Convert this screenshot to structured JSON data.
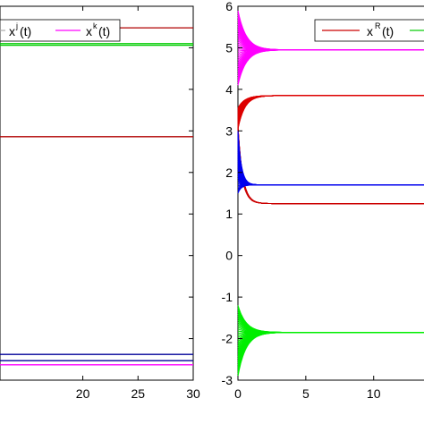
{
  "chart_data": [
    {
      "type": "line",
      "title": "",
      "xlabel": "",
      "ylabel": "",
      "xlim": [
        12.5,
        30
      ],
      "ylim": [
        -3,
        6
      ],
      "x_ticks": [
        "20",
        "25",
        "30"
      ],
      "x_tick_values": [
        20,
        25,
        30
      ],
      "y_ticks": [],
      "grid": false,
      "legend": {
        "placement": "top",
        "entries": [
          {
            "base": "x",
            "sup": "j",
            "tail": "(t)",
            "color": "#aaaaaa"
          },
          {
            "base": "x",
            "sup": "k",
            "tail": "(t)",
            "color": "#ff00ff"
          }
        ]
      },
      "series": [
        {
          "color": "#b00000",
          "x": [
            12.5,
            30
          ],
          "y": [
            5.48,
            5.48
          ]
        },
        {
          "color": "#00cc00",
          "x": [
            12.5,
            30
          ],
          "y": [
            5.1,
            5.1
          ]
        },
        {
          "color": "#00cc00",
          "x": [
            12.5,
            30
          ],
          "y": [
            5.06,
            5.06
          ]
        },
        {
          "color": "#b00000",
          "x": [
            12.5,
            30
          ],
          "y": [
            2.86,
            2.86
          ]
        },
        {
          "color": "#000099",
          "x": [
            12.5,
            30
          ],
          "y": [
            -2.38,
            -2.38
          ]
        },
        {
          "color": "#000099",
          "x": [
            12.5,
            30
          ],
          "y": [
            -2.53,
            -2.53
          ]
        },
        {
          "color": "#ff00ff",
          "x": [
            12.5,
            30
          ],
          "y": [
            -2.63,
            -2.63
          ]
        }
      ]
    },
    {
      "type": "line",
      "title": "",
      "xlabel": "",
      "ylabel": "",
      "xlim": [
        0,
        14.5
      ],
      "ylim": [
        -3,
        6
      ],
      "x_ticks": [
        "0",
        "5",
        "10"
      ],
      "x_tick_values": [
        0,
        5,
        10
      ],
      "y_ticks": [
        "6",
        "5",
        "4",
        "3",
        "2",
        "1",
        "0",
        "-1",
        "-2",
        "-3"
      ],
      "y_tick_values": [
        6,
        5,
        4,
        3,
        2,
        1,
        0,
        -1,
        -2,
        -3
      ],
      "grid": false,
      "legend": {
        "placement": "top",
        "entries": [
          {
            "base": "x",
            "sup": "R",
            "tail": "(t)",
            "color": "#cc0000"
          },
          {
            "base": "",
            "sup": "",
            "tail": "",
            "color": "#00cc00"
          }
        ]
      },
      "series": [
        {
          "color": "#ff00ff",
          "type": "bundle",
          "x0": 0,
          "y_start_range": [
            4.1,
            5.9
          ],
          "settle": 4.95,
          "tau": 0.6
        },
        {
          "color": "#00ee00",
          "type": "bundle",
          "x0": 0,
          "y_start_range": [
            -2.9,
            -1.2
          ],
          "settle": -1.85,
          "tau": 0.6
        },
        {
          "color": "#dd0000",
          "type": "bundle",
          "x0": 0,
          "y_start_range": [
            3.05,
            3.55
          ],
          "settle": 3.85,
          "tau": 0.5
        },
        {
          "color": "#cc0000",
          "type": "bundle",
          "x0": 0,
          "y_start_range": [
            2.8,
            3.1
          ],
          "settle": 1.25,
          "tau": 0.35
        },
        {
          "color": "#0000ee",
          "type": "bundle",
          "x0": 0,
          "y_start_range": [
            1.5,
            3.0
          ],
          "settle": 1.7,
          "tau": 0.25
        }
      ]
    }
  ]
}
